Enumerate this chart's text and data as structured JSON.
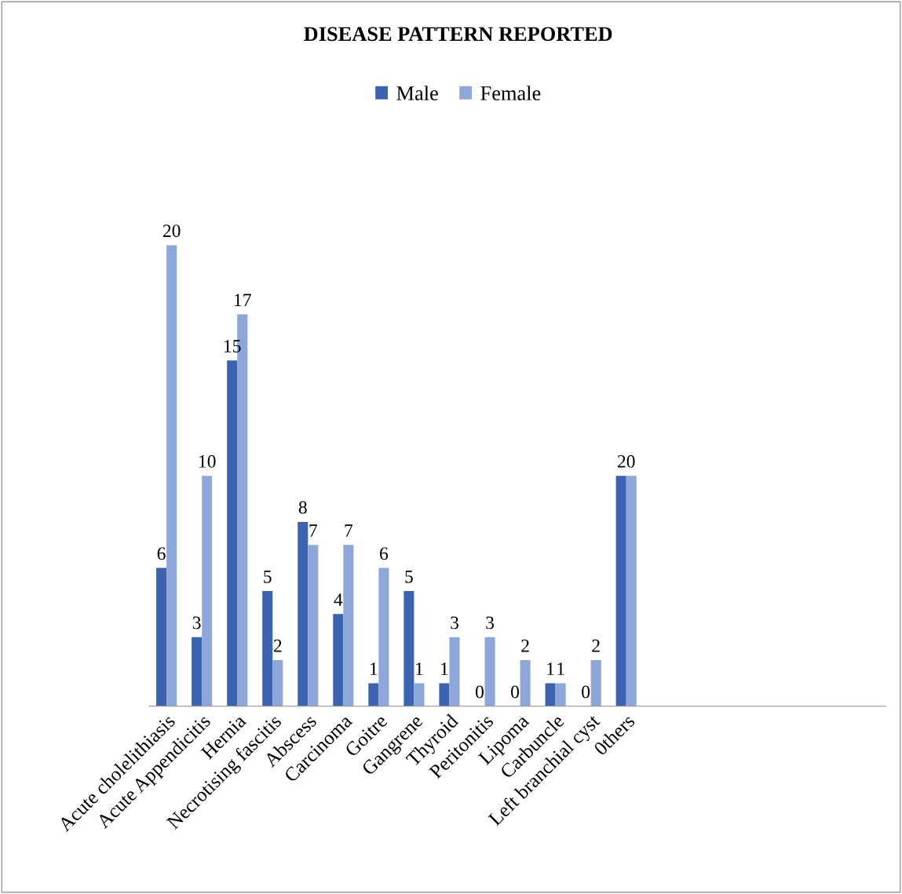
{
  "chart_data": {
    "type": "bar",
    "title": "DISEASE PATTERN REPORTED",
    "categories": [
      "Acute cholelithiasis",
      "Acute Appendicitis",
      "Hernia",
      "Necrotising fascitis",
      "Abscess",
      "Carcinoma",
      "Goitre",
      "Gangrene",
      "Thyroid",
      "Peritonitis",
      "Lipoma",
      "Carbuncle",
      "Left branchial cyst",
      "0thers"
    ],
    "series": [
      {
        "name": "Male",
        "color": "#3c63b2",
        "values": [
          6,
          3,
          15,
          5,
          8,
          4,
          1,
          5,
          1,
          0,
          0,
          1,
          0,
          10
        ],
        "value_labels": [
          "6",
          "3",
          "15",
          "5",
          "8",
          "4",
          "1",
          "5",
          "1",
          "0",
          "0",
          "1",
          "0",
          null
        ]
      },
      {
        "name": "Female",
        "color": "#8ea7da",
        "values": [
          20,
          10,
          17,
          2,
          7,
          7,
          6,
          1,
          3,
          3,
          2,
          1,
          2,
          10
        ],
        "value_labels": [
          "20",
          "10",
          "17",
          "2",
          "7",
          "7",
          "6",
          "1",
          "3",
          "3",
          "2",
          "1",
          "2",
          null
        ]
      }
    ],
    "annotations": [
      {
        "text": "20",
        "x": "0thers",
        "y": 10
      }
    ],
    "legend": "top",
    "grid": false
  }
}
